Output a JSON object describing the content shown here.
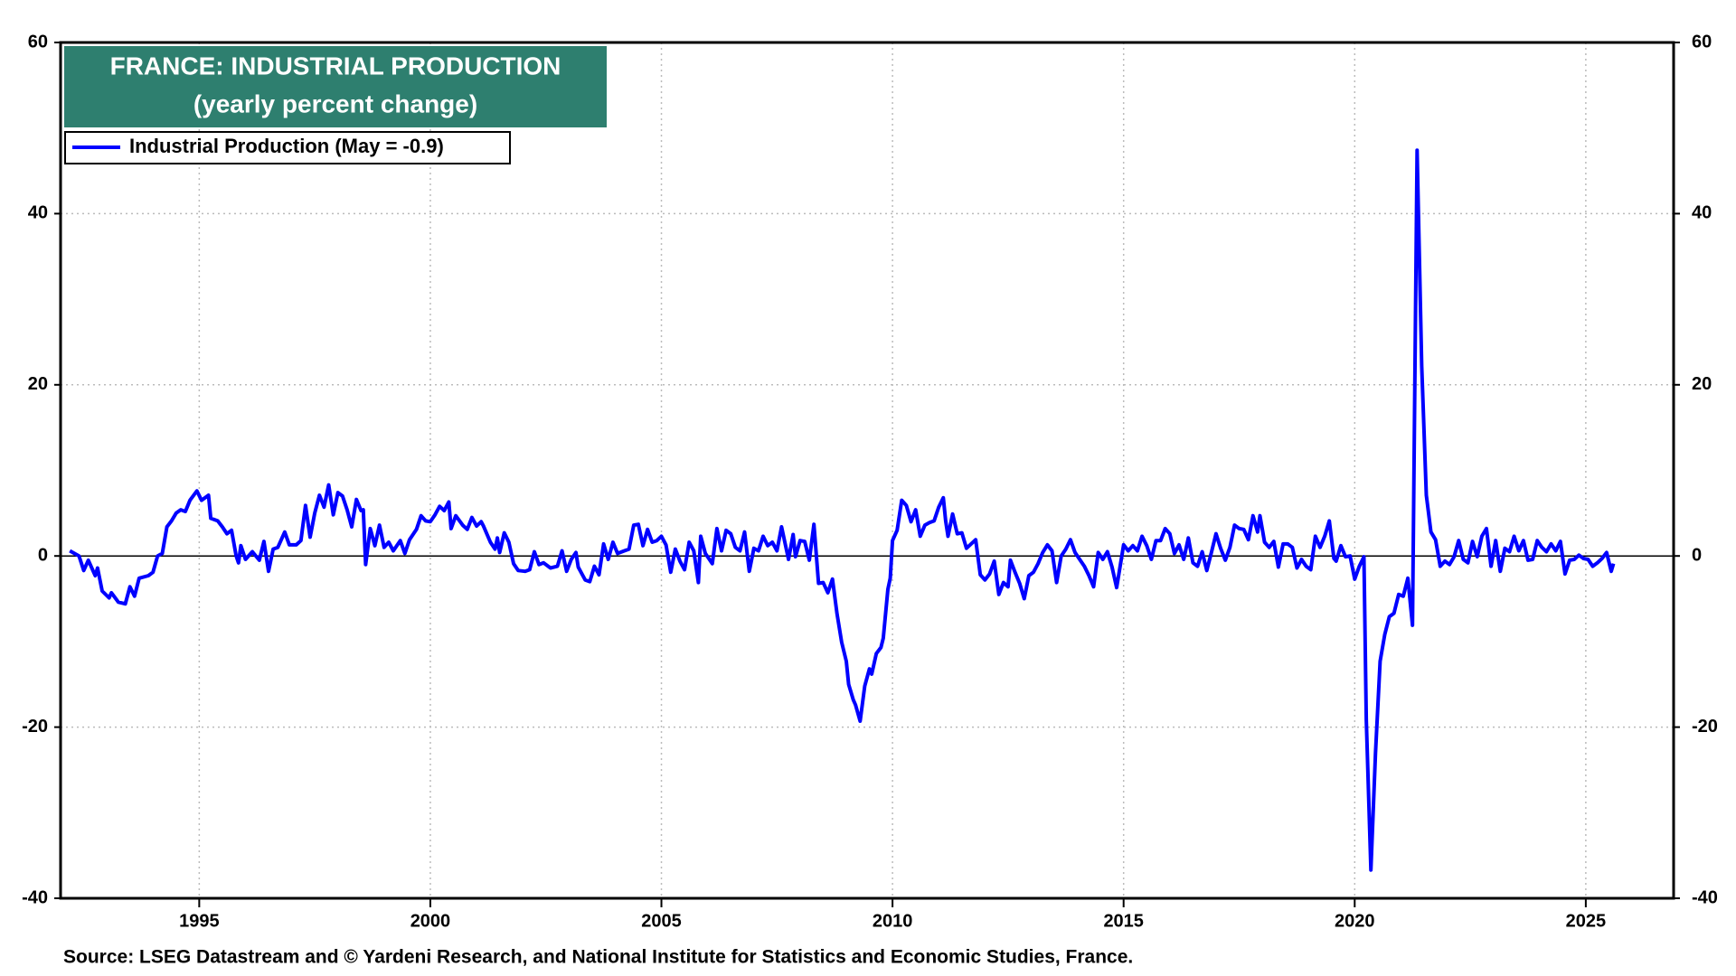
{
  "chart_data": {
    "type": "line",
    "title": "FRANCE: INDUSTRIAL PRODUCTION",
    "subtitle": "(yearly percent change)",
    "source": "Source: LSEG Datastream and © Yardeni Research, and National Institute for Statistics and Economic Studies, France.",
    "x": [
      1992.2,
      1992.4,
      1992.5,
      1992.6,
      1992.75,
      1992.8,
      1992.9,
      1993.05,
      1993.1,
      1993.25,
      1993.4,
      1993.5,
      1993.6,
      1993.7,
      1993.9,
      1994.0,
      1994.1,
      1994.2,
      1994.3,
      1994.4,
      1994.5,
      1994.6,
      1994.7,
      1994.8,
      1994.95,
      1995.05,
      1995.2,
      1995.25,
      1995.4,
      1995.5,
      1995.6,
      1995.7,
      1995.8,
      1995.85,
      1995.9,
      1996.0,
      1996.15,
      1996.3,
      1996.4,
      1996.5,
      1996.6,
      1996.7,
      1996.85,
      1996.95,
      1997.1,
      1997.2,
      1997.3,
      1997.4,
      1997.5,
      1997.6,
      1997.7,
      1997.8,
      1997.9,
      1998.0,
      1998.1,
      1998.2,
      1998.3,
      1998.4,
      1998.5,
      1998.55,
      1998.6,
      1998.7,
      1998.8,
      1998.9,
      1999.0,
      1999.1,
      1999.2,
      1999.35,
      1999.45,
      1999.55,
      1999.7,
      1999.8,
      1999.9,
      2000.0,
      2000.1,
      2000.2,
      2000.3,
      2000.4,
      2000.45,
      2000.55,
      2000.7,
      2000.8,
      2000.9,
      2001.0,
      2001.1,
      2001.15,
      2001.3,
      2001.4,
      2001.45,
      2001.5,
      2001.6,
      2001.7,
      2001.8,
      2001.9,
      2002.05,
      2002.15,
      2002.25,
      2002.35,
      2002.45,
      2002.6,
      2002.75,
      2002.85,
      2002.95,
      2003.05,
      2003.15,
      2003.2,
      2003.35,
      2003.45,
      2003.55,
      2003.65,
      2003.75,
      2003.85,
      2003.95,
      2004.05,
      2004.2,
      2004.3,
      2004.4,
      2004.5,
      2004.6,
      2004.7,
      2004.8,
      2004.9,
      2005.0,
      2005.1,
      2005.2,
      2005.3,
      2005.4,
      2005.5,
      2005.6,
      2005.7,
      2005.8,
      2005.85,
      2005.95,
      2006.1,
      2006.2,
      2006.3,
      2006.4,
      2006.5,
      2006.6,
      2006.7,
      2006.8,
      2006.9,
      2007.0,
      2007.1,
      2007.2,
      2007.3,
      2007.4,
      2007.5,
      2007.6,
      2007.75,
      2007.85,
      2007.9,
      2008.0,
      2008.1,
      2008.2,
      2008.3,
      2008.4,
      2008.5,
      2008.6,
      2008.7,
      2008.8,
      2008.9,
      2009.0,
      2009.05,
      2009.15,
      2009.2,
      2009.3,
      2009.4,
      2009.5,
      2009.55,
      2009.65,
      2009.75,
      2009.8,
      2009.9,
      2009.95,
      2010.0,
      2010.1,
      2010.2,
      2010.3,
      2010.4,
      2010.5,
      2010.6,
      2010.7,
      2010.8,
      2010.9,
      2011.0,
      2011.1,
      2011.15,
      2011.2,
      2011.3,
      2011.4,
      2011.5,
      2011.6,
      2011.7,
      2011.8,
      2011.9,
      2012.0,
      2012.1,
      2012.2,
      2012.3,
      2012.4,
      2012.5,
      2012.55,
      2012.65,
      2012.75,
      2012.85,
      2012.95,
      2013.05,
      2013.15,
      2013.25,
      2013.35,
      2013.45,
      2013.55,
      2013.65,
      2013.75,
      2013.85,
      2013.95,
      2014.05,
      2014.15,
      2014.25,
      2014.35,
      2014.45,
      2014.55,
      2014.65,
      2014.75,
      2014.85,
      2014.95,
      2015.0,
      2015.1,
      2015.2,
      2015.3,
      2015.4,
      2015.5,
      2015.6,
      2015.7,
      2015.8,
      2015.9,
      2016.0,
      2016.1,
      2016.2,
      2016.3,
      2016.4,
      2016.5,
      2016.6,
      2016.7,
      2016.8,
      2016.9,
      2017.0,
      2017.1,
      2017.2,
      2017.3,
      2017.4,
      2017.5,
      2017.6,
      2017.7,
      2017.8,
      2017.9,
      2017.95,
      2018.05,
      2018.15,
      2018.25,
      2018.35,
      2018.45,
      2018.55,
      2018.65,
      2018.75,
      2018.85,
      2018.95,
      2019.05,
      2019.15,
      2019.25,
      2019.35,
      2019.45,
      2019.55,
      2019.6,
      2019.7,
      2019.8,
      2019.9,
      2020.0,
      2020.1,
      2020.2,
      2020.25,
      2020.35,
      2020.45,
      2020.55,
      2020.65,
      2020.75,
      2020.85,
      2020.95,
      2021.05,
      2021.15,
      2021.25,
      2021.35,
      2021.45,
      2021.55,
      2021.65,
      2021.75,
      2021.85,
      2021.95,
      2022.05,
      2022.15,
      2022.25,
      2022.35,
      2022.45,
      2022.55,
      2022.65,
      2022.75,
      2022.85,
      2022.95,
      2023.05,
      2023.15,
      2023.25,
      2023.35,
      2023.45,
      2023.55,
      2023.65,
      2023.75,
      2023.85,
      2023.95,
      2024.05,
      2024.15,
      2024.25,
      2024.35,
      2024.45,
      2024.55,
      2024.65,
      2024.75,
      2024.85,
      2024.95,
      2025.05,
      2025.15,
      2025.25,
      2025.35,
      2025.45,
      2025.55,
      2025.6
    ],
    "series": [
      {
        "name": "Industrial Production (May = -0.9)",
        "color": "#0000ff",
        "values": [
          0.6,
          0,
          -1.7,
          -0.5,
          -2.3,
          -1.4,
          -4.1,
          -4.9,
          -4.3,
          -5.4,
          -5.6,
          -3.6,
          -4.7,
          -2.6,
          -2.3,
          -1.9,
          0,
          0.3,
          3.4,
          4.1,
          5.0,
          5.4,
          5.2,
          6.5,
          7.6,
          6.5,
          7.1,
          4.4,
          4.1,
          3.4,
          2.6,
          3.0,
          0,
          -0.8,
          1.2,
          -0.4,
          0.5,
          -0.5,
          1.7,
          -1.8,
          0.8,
          1.0,
          2.8,
          1.3,
          1.3,
          1.8,
          5.9,
          2.2,
          5.0,
          7.1,
          5.7,
          8.3,
          4.8,
          7.4,
          7.0,
          5.4,
          3.4,
          6.6,
          5.3,
          5.4,
          -1.0,
          3.2,
          1.2,
          3.6,
          1.0,
          1.6,
          0.6,
          1.8,
          0.3,
          1.9,
          3.1,
          4.7,
          4.1,
          4.0,
          4.8,
          5.8,
          5.3,
          6.3,
          3.2,
          4.7,
          3.6,
          3.1,
          4.5,
          3.5,
          4.0,
          3.5,
          1.6,
          0.8,
          2.1,
          0.4,
          2.7,
          1.6,
          -0.9,
          -1.7,
          -1.8,
          -1.6,
          0.5,
          -1.0,
          -0.8,
          -1.4,
          -1.2,
          0.6,
          -1.8,
          -0.4,
          0.4,
          -1.3,
          -2.8,
          -3.0,
          -1.2,
          -2.2,
          1.4,
          -0.4,
          1.6,
          0.3,
          0.6,
          0.8,
          3.6,
          3.7,
          1.2,
          3.1,
          1.6,
          1.8,
          2.3,
          1.3,
          -1.9,
          0.8,
          -0.6,
          -1.6,
          1.6,
          0.6,
          -3.1,
          2.3,
          0.3,
          -0.9,
          3.2,
          0.6,
          3.0,
          2.6,
          1.0,
          0.6,
          2.8,
          -1.8,
          0.9,
          0.6,
          2.3,
          1.2,
          1.6,
          0.6,
          3.4,
          -0.4,
          2.5,
          -0.1,
          1.8,
          1.7,
          -0.5,
          3.7,
          -3.2,
          -3.1,
          -4.3,
          -2.7,
          -6.8,
          -10.1,
          -12.3,
          -15.0,
          -16.8,
          -17.4,
          -19.3,
          -15.2,
          -13.2,
          -13.8,
          -11.4,
          -10.7,
          -9.6,
          -3.9,
          -2.6,
          1.8,
          3.0,
          6.5,
          5.9,
          4.0,
          5.4,
          2.3,
          3.6,
          3.9,
          4.1,
          5.7,
          6.8,
          4.1,
          2.3,
          4.9,
          2.6,
          2.7,
          0.9,
          1.4,
          1.9,
          -2.2,
          -2.8,
          -2.1,
          -0.6,
          -4.5,
          -3.1,
          -3.6,
          -0.5,
          -1.9,
          -3.2,
          -5.0,
          -2.3,
          -1.9,
          -0.9,
          0.4,
          1.3,
          0.6,
          -3.1,
          0,
          0.8,
          1.9,
          0.4,
          -0.4,
          -1.2,
          -2.3,
          -3.6,
          0.4,
          -0.4,
          0.5,
          -1.3,
          -3.7,
          -0.4,
          1.3,
          0.6,
          1.2,
          0.6,
          2.3,
          1.2,
          -0.4,
          1.8,
          1.8,
          3.2,
          2.6,
          0.3,
          1.3,
          -0.4,
          2.1,
          -0.8,
          -1.2,
          0.5,
          -1.7,
          0.4,
          2.6,
          0.9,
          -0.5,
          1.0,
          3.6,
          3.2,
          3.1,
          1.9,
          4.7,
          2.8,
          4.7,
          1.6,
          1.0,
          1.7,
          -1.3,
          1.4,
          1.4,
          1.0,
          -1.4,
          -0.4,
          -1.2,
          -1.6,
          2.3,
          1.0,
          2.3,
          4.1,
          -0.3,
          -0.6,
          1.2,
          -0.1,
          0,
          -2.7,
          -1.2,
          -0.1,
          -19.1,
          -36.7,
          -23.0,
          -12.3,
          -9.2,
          -7.1,
          -6.7,
          -4.5,
          -4.7,
          -2.6,
          -8.1,
          47.4,
          22.2,
          7.1,
          2.8,
          1.9,
          -1.2,
          -0.6,
          -1.0,
          -0.1,
          1.8,
          -0.4,
          -0.8,
          1.7,
          -0.1,
          2.3,
          3.2,
          -1.2,
          1.8,
          -1.8,
          0.9,
          0.5,
          2.3,
          0.6,
          1.8,
          -0.5,
          -0.4,
          1.8,
          1.0,
          0.5,
          1.4,
          0.6,
          1.7,
          -2.1,
          -0.5,
          -0.4,
          0.1,
          -0.3,
          -0.4,
          -1.2,
          -0.8,
          -0.3,
          0.4,
          -1.8,
          -0.9
        ]
      }
    ],
    "xlim": [
      1992,
      2026.9
    ],
    "xticks": [
      1995,
      2000,
      2005,
      2010,
      2015,
      2020,
      2025
    ],
    "ylim": [
      -40,
      60
    ],
    "yticks": [
      -40,
      -20,
      0,
      20,
      40,
      60
    ],
    "y2lim": [
      -40,
      60
    ],
    "y2ticks": [
      -40,
      -20,
      0,
      20,
      40,
      60
    ],
    "grid": true
  }
}
